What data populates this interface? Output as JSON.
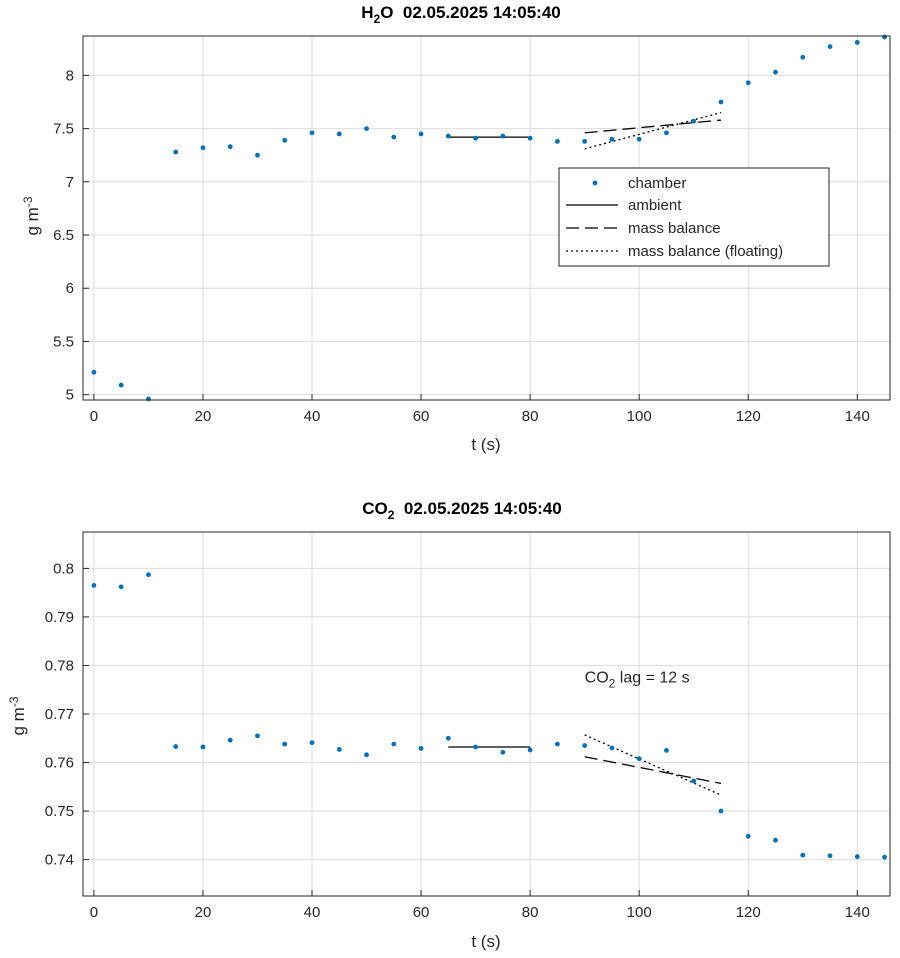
{
  "chart_data": [
    {
      "type": "scatter",
      "title": {
        "main": "H",
        "sub": "2",
        "post": "O  02.05.2025 14:05:40"
      },
      "xlabel": "t (s)",
      "ylabel": {
        "base": "g m",
        "sup": "-3"
      },
      "xlim": [
        -2,
        146
      ],
      "ylim": [
        4.95,
        8.37
      ],
      "xticks": [
        0,
        20,
        40,
        60,
        80,
        100,
        120,
        140
      ],
      "yticks": [
        5,
        5.5,
        6,
        6.5,
        7,
        7.5,
        8
      ],
      "ytick_labels": [
        "5",
        "5.5",
        "6",
        "6.5",
        "7",
        "7.5",
        "8"
      ],
      "grid": true,
      "legend_position": "inside-right",
      "legend": [
        "chamber",
        "ambient",
        "mass balance",
        "mass balance (floating)"
      ],
      "colors": {
        "chamber": "#0072bd",
        "lines": "#000000",
        "grid": "#dcdcdc"
      },
      "series": [
        {
          "name": "chamber",
          "style": "dots",
          "x": [
            0,
            5,
            10,
            15,
            20,
            25,
            30,
            35,
            40,
            45,
            50,
            55,
            60,
            65,
            70,
            75,
            80,
            85,
            90,
            95,
            100,
            105,
            110,
            115,
            120,
            125,
            130,
            135,
            140,
            145
          ],
          "y": [
            5.21,
            5.09,
            4.96,
            7.28,
            7.32,
            7.33,
            7.25,
            7.39,
            7.46,
            7.45,
            7.5,
            7.42,
            7.45,
            7.43,
            7.41,
            7.43,
            7.41,
            7.38,
            7.38,
            7.4,
            7.4,
            7.46,
            7.57,
            7.75,
            7.93,
            8.03,
            8.17,
            8.27,
            8.31,
            8.36
          ]
        },
        {
          "name": "ambient",
          "style": "solid",
          "x": [
            65,
            80
          ],
          "y": [
            7.42,
            7.42
          ]
        },
        {
          "name": "mass balance",
          "style": "dashed",
          "x": [
            90,
            115
          ],
          "y": [
            7.46,
            7.58
          ]
        },
        {
          "name": "mass balance (floating)",
          "style": "dotted",
          "x": [
            90,
            115
          ],
          "y": [
            7.31,
            7.65
          ]
        }
      ]
    },
    {
      "type": "scatter",
      "title": {
        "main": "CO",
        "sub": "2",
        "post": "  02.05.2025 14:05:40"
      },
      "xlabel": "t (s)",
      "ylabel": {
        "base": "g m",
        "sup": "-3"
      },
      "xlim": [
        -2,
        146
      ],
      "ylim": [
        0.7325,
        0.8075
      ],
      "xticks": [
        0,
        20,
        40,
        60,
        80,
        100,
        120,
        140
      ],
      "yticks": [
        0.74,
        0.75,
        0.76,
        0.77,
        0.78,
        0.79,
        0.8
      ],
      "ytick_labels": [
        "0.74",
        "0.75",
        "0.76",
        "0.77",
        "0.78",
        "0.79",
        "0.8"
      ],
      "grid": true,
      "annotation": {
        "main": "CO",
        "sub": "2",
        "post": " lag = 12 s",
        "x": 90,
        "y": 0.7765
      },
      "colors": {
        "chamber": "#0072bd",
        "lines": "#000000",
        "grid": "#dcdcdc"
      },
      "series": [
        {
          "name": "chamber",
          "style": "dots",
          "x": [
            0,
            5,
            10,
            15,
            20,
            25,
            30,
            35,
            40,
            45,
            50,
            55,
            60,
            65,
            70,
            75,
            80,
            85,
            90,
            95,
            100,
            105,
            110,
            115,
            120,
            125,
            130,
            135,
            140,
            145
          ],
          "y": [
            0.7965,
            0.7962,
            0.7987,
            0.7633,
            0.7632,
            0.7646,
            0.7655,
            0.7638,
            0.7641,
            0.7627,
            0.7616,
            0.7638,
            0.7629,
            0.765,
            0.7632,
            0.7621,
            0.7626,
            0.7638,
            0.7635,
            0.763,
            0.7608,
            0.7625,
            0.7562,
            0.75,
            0.7448,
            0.744,
            0.7409,
            0.7408,
            0.7406,
            0.7405
          ]
        },
        {
          "name": "ambient",
          "style": "solid",
          "x": [
            65,
            80
          ],
          "y": [
            0.7632,
            0.7632
          ]
        },
        {
          "name": "mass balance",
          "style": "dashed",
          "x": [
            90,
            115
          ],
          "y": [
            0.7612,
            0.7557
          ]
        },
        {
          "name": "mass balance (floating)",
          "style": "dotted",
          "x": [
            90,
            115
          ],
          "y": [
            0.7657,
            0.7533
          ]
        }
      ]
    }
  ]
}
